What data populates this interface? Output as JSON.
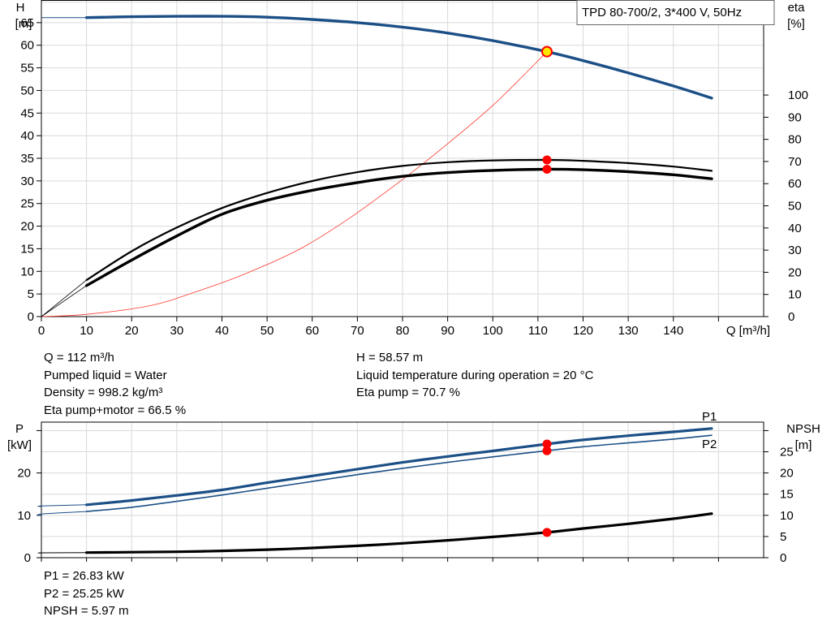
{
  "title_box": "TPD 80-700/2, 3*400 V, 50Hz",
  "colors": {
    "head": "#1b4f86",
    "power": "#1b4f86",
    "eta": "#000000",
    "npsh": "#000000",
    "system": "#ff3b30",
    "duty_point": "#ff0000",
    "duty_point_head": "#ffe600",
    "grid": "#d9d9d9"
  },
  "info_left": [
    "Q = 112 m³/h",
    "Pumped liquid = Water",
    "Density = 998.2 kg/m³",
    "Eta pump+motor = 66.5 %"
  ],
  "info_right": [
    "H = 58.57 m",
    "Liquid temperature during operation = 20 °C",
    "Eta pump = 70.7 %"
  ],
  "info_bottom": [
    "P1 = 26.83 kW",
    "P2 = 25.25 kW",
    "NPSH = 5.97 m"
  ],
  "chart_data": [
    {
      "type": "line",
      "x_label": "Q [m³/h]",
      "x_ticks": [
        0,
        10,
        20,
        30,
        40,
        50,
        60,
        70,
        80,
        90,
        100,
        110,
        120,
        130,
        140
      ],
      "xlim": [
        0,
        160
      ],
      "left_axis": {
        "label_line1": "H",
        "label_line2": "[m]",
        "ticks": [
          0,
          5,
          10,
          15,
          20,
          25,
          30,
          35,
          40,
          45,
          50,
          55,
          60,
          65
        ],
        "ylim": [
          0,
          70
        ]
      },
      "right_axis": {
        "label_line1": "eta",
        "label_line2": "[%]",
        "ticks": [
          0,
          10,
          20,
          30,
          40,
          50,
          60,
          70,
          80,
          90,
          100
        ],
        "ylim": [
          0,
          142.9
        ]
      },
      "grid": true,
      "duty_point": {
        "q": 112,
        "h": 58.57,
        "eta_pump": 70.7,
        "eta_total": 66.5
      },
      "series": [
        {
          "id": "head",
          "axis": "left",
          "x": [
            0,
            10,
            20,
            30,
            40,
            50,
            60,
            70,
            80,
            90,
            100,
            112,
            120,
            130,
            140,
            148.5
          ],
          "y": [
            66.1,
            66.1,
            66.3,
            66.4,
            66.4,
            66.2,
            65.7,
            65.0,
            64.0,
            62.7,
            61.0,
            58.57,
            56.6,
            53.9,
            51.0,
            48.3
          ]
        },
        {
          "id": "eta_pump",
          "axis": "right",
          "x": [
            0,
            10,
            20,
            30,
            40,
            50,
            60,
            70,
            80,
            90,
            100,
            112,
            120,
            130,
            140,
            148.5
          ],
          "y": [
            0,
            16.5,
            29.5,
            40.2,
            49.0,
            55.8,
            61.2,
            65.2,
            68.0,
            69.7,
            70.5,
            70.7,
            70.3,
            69.3,
            67.7,
            65.8
          ]
        },
        {
          "id": "eta_total",
          "axis": "right",
          "x": [
            0,
            10,
            20,
            30,
            40,
            50,
            60,
            70,
            80,
            90,
            100,
            112,
            120,
            130,
            140,
            148.5
          ],
          "y": [
            0,
            14.0,
            25.5,
            36.4,
            46.2,
            52.5,
            57.0,
            60.5,
            63.3,
            65.0,
            66.0,
            66.5,
            66.3,
            65.4,
            64.0,
            62.2
          ]
        },
        {
          "id": "system",
          "axis": "left",
          "x": [
            0,
            10,
            24,
            34,
            45,
            57,
            68,
            80,
            88,
            100,
            112
          ],
          "y": [
            0,
            0.5,
            2.4,
            5.4,
            9.4,
            14.8,
            21.6,
            30.3,
            36.6,
            46.7,
            58.57
          ]
        }
      ]
    },
    {
      "type": "line",
      "left_axis": {
        "label_line1": "P",
        "label_line2": "[kW]",
        "ticks": [
          0,
          10,
          20
        ],
        "ylim": [
          0,
          32
        ]
      },
      "right_axis": {
        "label_line1": "NPSH",
        "label_line2": "[m]",
        "ticks": [
          0,
          5,
          10,
          15,
          20,
          25
        ],
        "ylim": [
          0,
          32
        ]
      },
      "grid": true,
      "series": [
        {
          "id": "P1",
          "name": "P1",
          "axis": "left",
          "x": [
            -10,
            0,
            10,
            20,
            30,
            40,
            50,
            60,
            70,
            80,
            90,
            100,
            112,
            120,
            130,
            140,
            148.5
          ],
          "y": [
            12.1,
            12.2,
            12.5,
            13.5,
            14.7,
            16.0,
            17.7,
            19.3,
            20.9,
            22.5,
            23.9,
            25.2,
            26.83,
            27.8,
            28.8,
            29.7,
            30.5
          ]
        },
        {
          "id": "P2",
          "name": "P2",
          "axis": "left",
          "x": [
            -10,
            0,
            10,
            20,
            30,
            40,
            50,
            60,
            70,
            80,
            90,
            100,
            112,
            120,
            130,
            140,
            148.5
          ],
          "y": [
            9.9,
            10.3,
            10.9,
            11.9,
            13.3,
            14.8,
            16.4,
            18.0,
            19.6,
            21.1,
            22.5,
            23.8,
            25.25,
            26.2,
            27.1,
            28.0,
            28.9
          ]
        },
        {
          "id": "NPSH",
          "axis": "right",
          "x": [
            -10,
            0,
            10,
            20,
            30,
            40,
            50,
            60,
            70,
            80,
            90,
            100,
            112,
            120,
            130,
            140,
            148.5
          ],
          "y": [
            1.1,
            1.15,
            1.2,
            1.3,
            1.4,
            1.6,
            1.9,
            2.3,
            2.8,
            3.4,
            4.1,
            4.9,
            5.97,
            6.9,
            8.0,
            9.2,
            10.4
          ]
        }
      ]
    }
  ]
}
